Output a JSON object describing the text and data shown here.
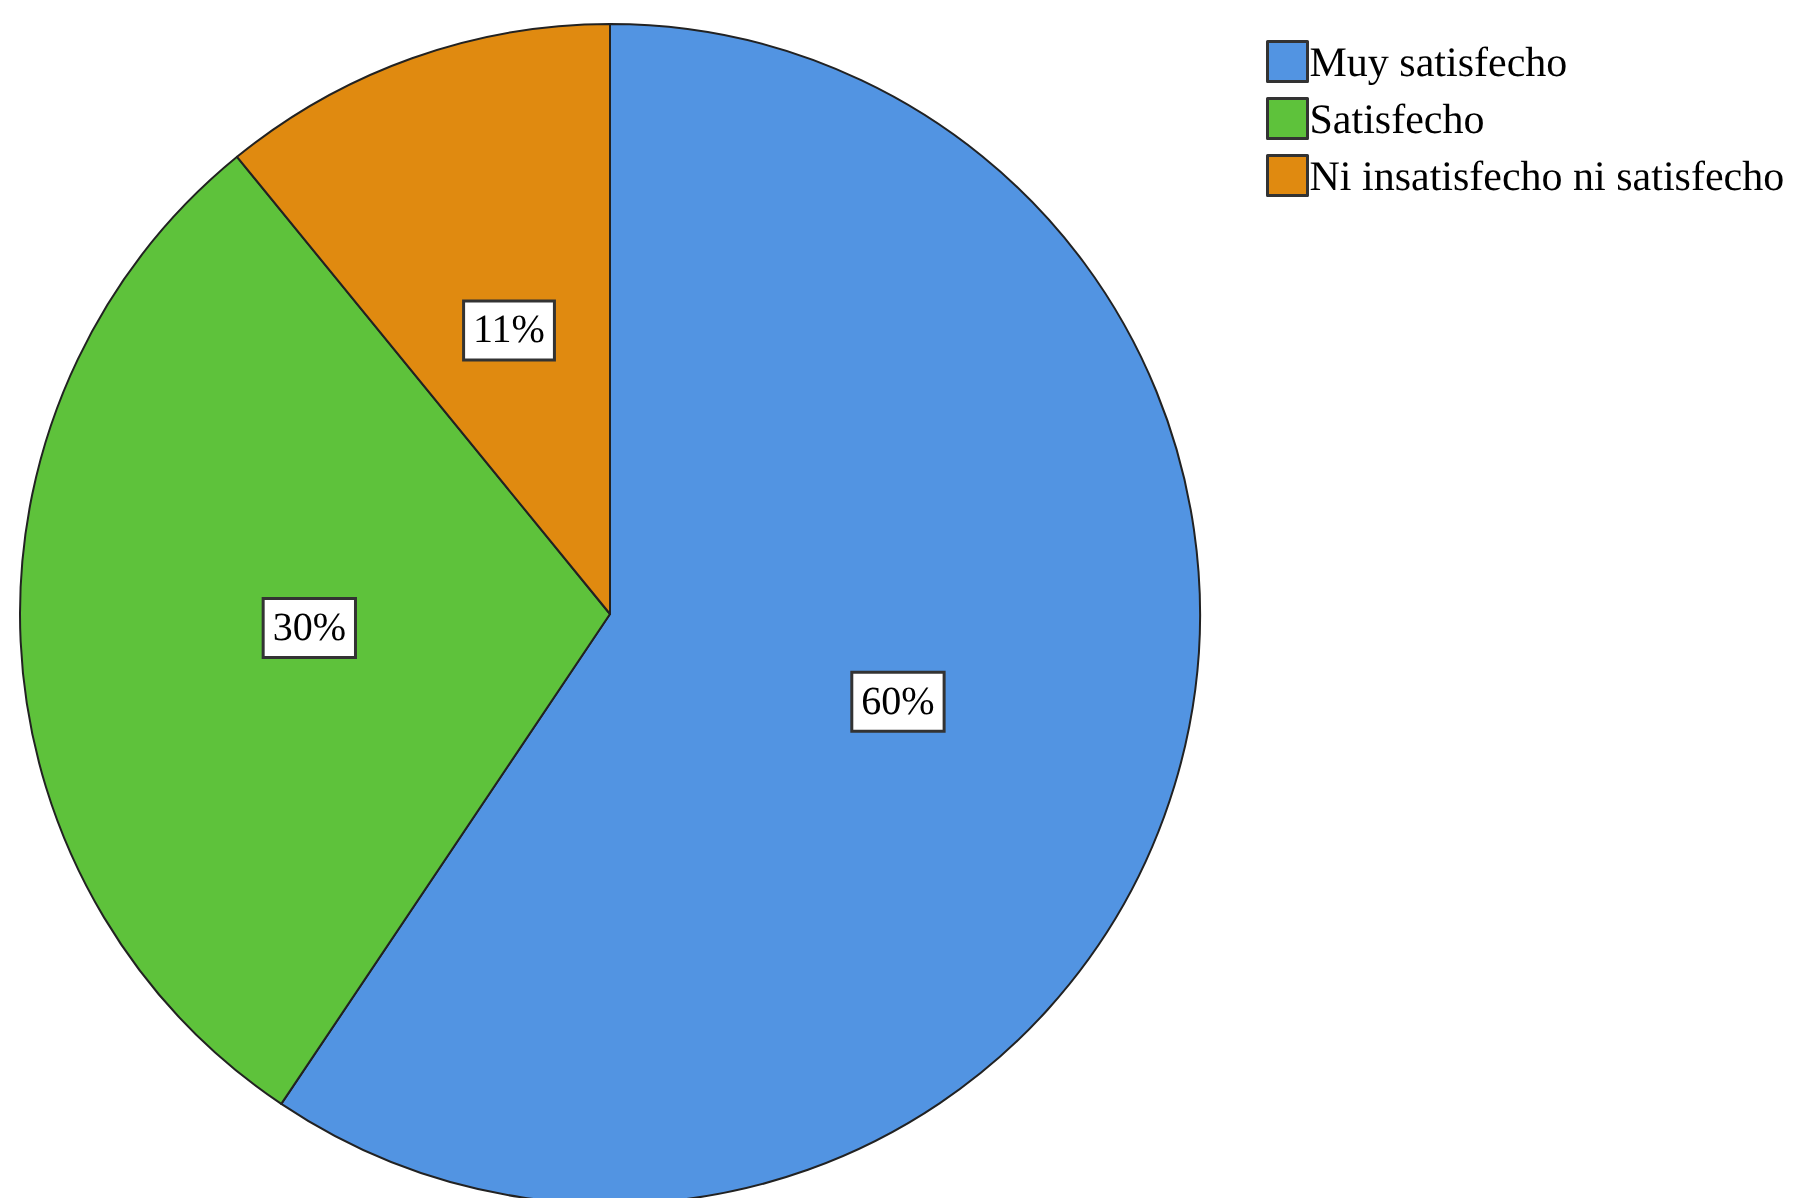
{
  "chart_data": {
    "type": "pie",
    "categories": [
      "Muy satisfecho",
      "Satisfecho",
      "Ni insatisfecho ni satisfecho"
    ],
    "values": [
      60,
      30,
      11
    ],
    "colors": [
      "#5294e2",
      "#5ec23b",
      "#e08a10"
    ],
    "value_labels": [
      "60%",
      "30%",
      "11%"
    ],
    "legend": "top right"
  }
}
